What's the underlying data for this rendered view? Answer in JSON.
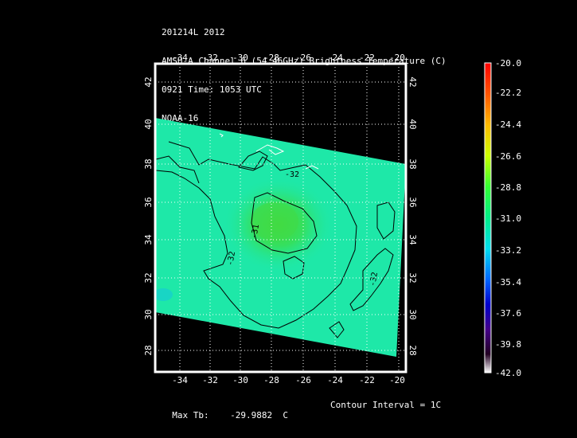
{
  "header": {
    "line1": "201214L 2012",
    "line2": "AMSU-A Channel 6 (54.46GHz) Brightness Temperature (C)",
    "line3": "0921 Time: 1053 UTC",
    "line4": "NOAA-16"
  },
  "map": {
    "lon_labels": [
      "-34",
      "-32",
      "-30",
      "-28",
      "-26",
      "-24",
      "-22",
      "-20"
    ],
    "lat_labels": [
      "42",
      "40",
      "38",
      "36",
      "34",
      "32",
      "30",
      "28"
    ],
    "contour_labels": [
      "-32",
      "-31",
      "-32",
      "-32"
    ],
    "colors": {
      "swath": "#1ee8a8",
      "warm_core": "#2ee05a",
      "background": "#000000",
      "frame": "#ffffff"
    }
  },
  "colorbar": {
    "labels": [
      "-20.0",
      "-22.2",
      "-24.4",
      "-26.6",
      "-28.8",
      "-31.0",
      "-33.2",
      "-35.4",
      "-37.6",
      "-39.8",
      "-42.0"
    ],
    "stops": [
      "#ff0000",
      "#ff6600",
      "#ffcc00",
      "#c8ff00",
      "#33ff33",
      "#00ee88",
      "#00ddee",
      "#0066ff",
      "#0000cc",
      "#440088",
      "#220022",
      "#ffffff"
    ]
  },
  "footer": {
    "max_label": "Max Tb:",
    "max_value": "-29.9882",
    "max_unit": "C",
    "contour_interval": "Contour Interval = 1C"
  }
}
